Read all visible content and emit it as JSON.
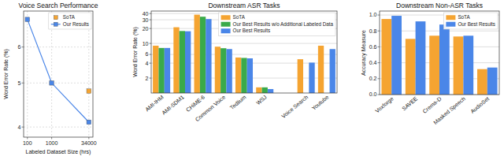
{
  "chart_data": [
    {
      "type": "line",
      "title": "Voice Search Performance",
      "x_label": "Labeled Dataset Size (hrs)",
      "y_label": "Word Error Rate (%)",
      "x": [
        100,
        1000,
        34000
      ],
      "series": [
        {
          "name": "SoTA",
          "color": "#f5a431",
          "marker": "square",
          "line_style": "none",
          "values": [
            null,
            null,
            4.8
          ]
        },
        {
          "name": "Our Results",
          "color": "#4a86e8",
          "marker": "square",
          "line_style": "solid",
          "values": [
            6.9,
            5.0,
            4.1
          ]
        }
      ],
      "xlim": [
        70,
        50000
      ],
      "ylim": [
        3.8,
        7.2
      ],
      "xticks": [
        100,
        1000,
        34000
      ],
      "yticks": [
        4,
        5,
        6
      ],
      "log": true,
      "grid": true,
      "legend": "upper right"
    },
    {
      "type": "bar",
      "title": "Downstream ASR Tasks",
      "y_label": "Word Error Rate (%)",
      "categories": [
        "AMI-IHM",
        "AMI-SDM1",
        "CHiME-6",
        "Common Voice",
        "Tedlium",
        "WSJ",
        null,
        "Voice Search",
        "Youtube"
      ],
      "series": [
        {
          "name": "SoTA",
          "color": "#f5a431",
          "values": [
            9.0,
            21.2,
            38.0,
            8.6,
            5.2,
            1.3,
            null,
            4.8,
            9.0
          ]
        },
        {
          "name": "Our Best Results w/o Additional Labeled Data",
          "color": "#3aaa4a",
          "values": [
            8.1,
            17.8,
            34.6,
            8.0,
            5.1,
            1.3,
            null,
            null,
            null
          ]
        },
        {
          "name": "Our Best Results",
          "color": "#4a86e8",
          "values": [
            8.1,
            17.6,
            31.0,
            7.7,
            5.0,
            1.2,
            null,
            4.1,
            7.7
          ]
        }
      ],
      "ylim": [
        1,
        45
      ],
      "yticks": [
        2,
        4,
        6,
        10,
        20,
        30,
        40
      ],
      "log": "y",
      "grid": true,
      "legend": "upper right"
    },
    {
      "type": "bar",
      "title": "Downstream Non-ASR Tasks",
      "y_label": "Accuracy Measure",
      "categories": [
        "Voxforge",
        "SAVEE",
        "Crema-D",
        "Masked Speech",
        "AudioSet"
      ],
      "series": [
        {
          "name": "SoTA",
          "color": "#f5a431",
          "values": [
            0.95,
            0.7,
            0.74,
            0.73,
            0.32
          ]
        },
        {
          "name": "Our Best Results",
          "color": "#4a86e8",
          "values": [
            0.99,
            0.92,
            0.88,
            0.74,
            0.34
          ]
        }
      ],
      "ylim": [
        0,
        1.05
      ],
      "yticks": [
        {
          "value": 0,
          "label": "0.0"
        },
        0.2,
        0.4,
        0.6,
        0.8,
        {
          "value": 1,
          "label": "1.0"
        }
      ],
      "grid": true,
      "legend": "upper right"
    }
  ]
}
